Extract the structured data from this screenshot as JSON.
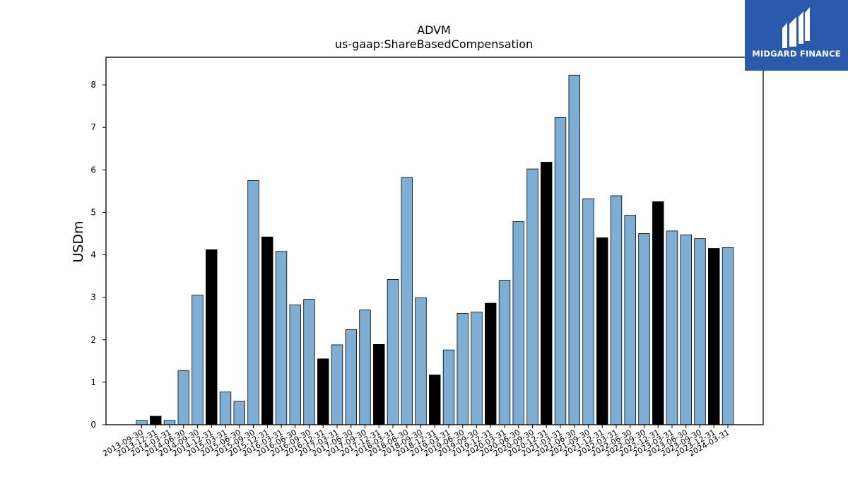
{
  "chart_data": {
    "type": "bar",
    "title": "ADVM",
    "subtitle": "us-gaap:ShareBasedCompensation",
    "xlabel": "",
    "ylabel": "USDm",
    "ylim": [
      0,
      8.65
    ],
    "yticks": [
      0,
      1,
      2,
      3,
      4,
      5,
      6,
      7,
      8
    ],
    "grid": false,
    "colors": {
      "quarter": "#7eaed3",
      "year_end": "#000000",
      "edge": "#000000"
    },
    "categories": [
      "2013-09-30",
      "2013-12-31",
      "2014-03-31",
      "2014-06-30",
      "2014-09-30",
      "2014-12-31",
      "2015-03-31",
      "2015-06-30",
      "2015-09-30",
      "2015-12-31",
      "2016-03-31",
      "2016-06-30",
      "2016-09-30",
      "2016-12-31",
      "2017-03-31",
      "2017-06-30",
      "2017-09-30",
      "2017-12-31",
      "2018-03-31",
      "2018-06-30",
      "2018-09-30",
      "2018-12-31",
      "2019-03-31",
      "2019-06-30",
      "2019-09-30",
      "2019-12-31",
      "2020-03-31",
      "2020-06-30",
      "2020-09-30",
      "2020-12-31",
      "2021-03-31",
      "2021-06-30",
      "2021-09-30",
      "2021-12-31",
      "2022-03-31",
      "2022-06-30",
      "2022-09-30",
      "2022-12-31",
      "2023-03-31",
      "2023-06-30",
      "2023-09-30",
      "2023-12-31",
      "2024-03-31"
    ],
    "values": [
      0.1,
      0.2,
      0.1,
      1.27,
      3.05,
      4.12,
      0.77,
      0.55,
      5.75,
      4.42,
      4.08,
      2.82,
      2.95,
      1.55,
      1.88,
      2.24,
      2.7,
      1.89,
      3.42,
      5.82,
      2.99,
      1.17,
      1.76,
      2.62,
      2.65,
      2.86,
      3.4,
      4.78,
      6.02,
      6.18,
      7.23,
      8.23,
      5.32,
      4.4,
      5.39,
      4.93,
      4.5,
      5.25,
      4.56,
      4.47,
      4.38,
      4.15,
      4.17
    ],
    "year_end": [
      false,
      true,
      false,
      false,
      false,
      true,
      false,
      false,
      false,
      true,
      false,
      false,
      false,
      true,
      false,
      false,
      false,
      true,
      false,
      false,
      false,
      true,
      false,
      false,
      false,
      true,
      false,
      false,
      false,
      true,
      false,
      false,
      false,
      true,
      false,
      false,
      false,
      true,
      false,
      false,
      false,
      true,
      false
    ]
  },
  "logo": {
    "text": "MIDGARD FINANCE",
    "background": "#2b5aad"
  }
}
